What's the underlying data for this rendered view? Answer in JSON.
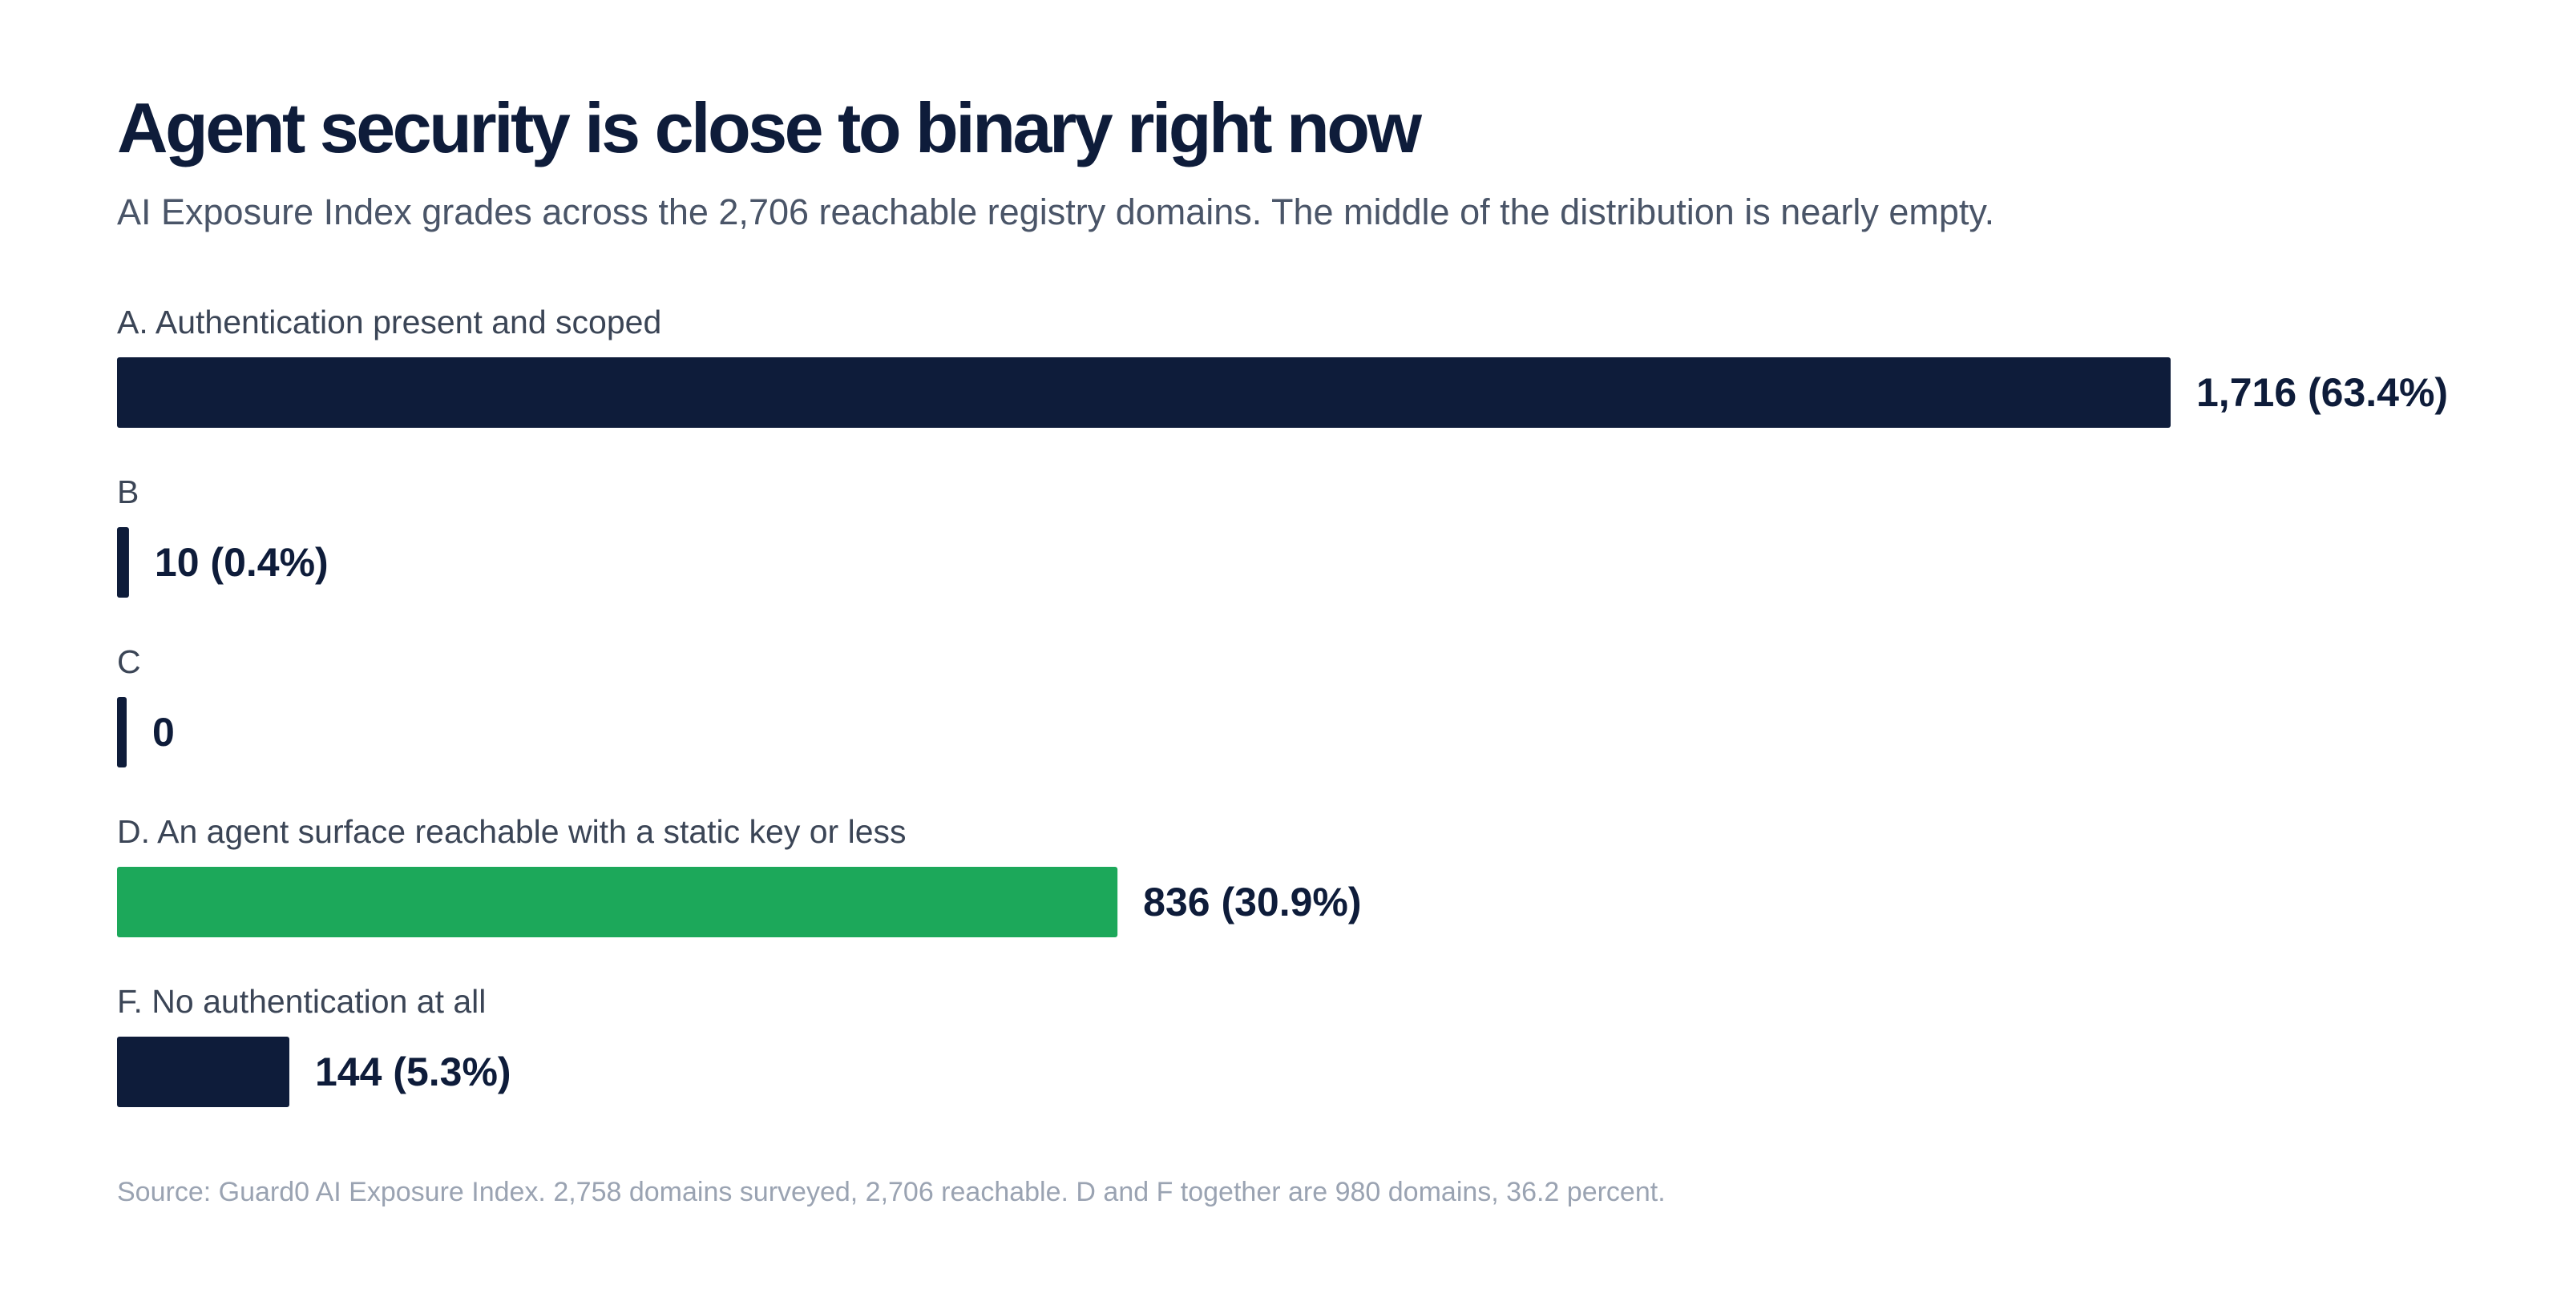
{
  "chart_data": {
    "type": "bar",
    "orientation": "horizontal",
    "title": "Agent security is close to binary right now",
    "subtitle": "AI Exposure Index grades across the 2,706 reachable registry domains. The middle of the distribution is nearly empty.",
    "categories": [
      "A. Authentication present and scoped",
      "B",
      "C",
      "D. An agent surface reachable with a static key or less",
      "F. No authentication at all"
    ],
    "values": [
      1716,
      10,
      0,
      836,
      144
    ],
    "value_labels": [
      "1,716 (63.4%)",
      "10 (0.4%)",
      "0",
      "836 (30.9%)",
      "144 (5.3%)"
    ],
    "colors": [
      "#0e1c3a",
      "#0e1c3a",
      "#0e1c3a",
      "#1ca85a",
      "#0e1c3a"
    ],
    "xlim": [
      0,
      1716
    ],
    "grid": false,
    "source": "Source: Guard0 AI Exposure Index. 2,758 domains surveyed, 2,706 reachable. D and F together are 980 domains, 36.2 percent."
  }
}
